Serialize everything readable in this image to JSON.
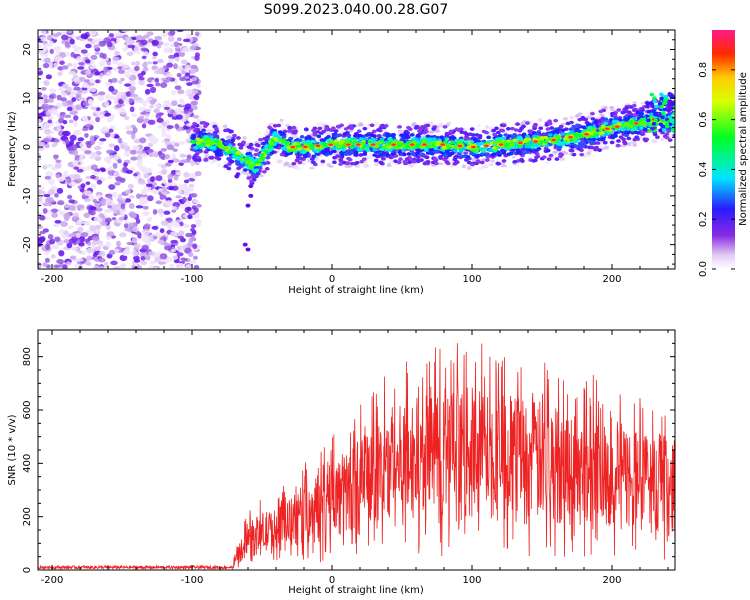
{
  "figure": {
    "title": "S099.2023.040.00.28.G07"
  },
  "chart_data": [
    {
      "type": "heatmap",
      "xlabel": "Height of straight line (km)",
      "ylabel": "Frequency (Hz)",
      "xlim": [
        -210,
        245
      ],
      "ylim": [
        -25,
        24
      ],
      "xticks": [
        -200,
        -100,
        0,
        100,
        200
      ],
      "yticks": [
        -20,
        -10,
        0,
        10,
        20
      ],
      "colorbar": {
        "label": "Normalized spectral amplitude",
        "range": [
          0,
          0.96
        ],
        "ticks": [
          "0.0",
          "0.2",
          "0.4",
          "0.6",
          "0.8"
        ],
        "tick_values": [
          0.0,
          0.2,
          0.4,
          0.6,
          0.8
        ]
      },
      "ridge": {
        "x": [
          -100,
          -90,
          -80,
          -70,
          -60,
          -55,
          -50,
          -45,
          -40,
          -30,
          -20,
          0,
          20,
          50,
          80,
          100,
          120,
          140,
          160,
          180,
          200,
          220,
          235,
          245
        ],
        "y": [
          1,
          1,
          0.5,
          -1,
          -3,
          -4,
          -2,
          0,
          2,
          0,
          0,
          0.5,
          0.5,
          0.5,
          0.5,
          0,
          0.5,
          1,
          1.5,
          2.5,
          4,
          5,
          6,
          5
        ]
      },
      "noise_region": {
        "x_range": [
          -210,
          -95
        ],
        "y_range": [
          -25,
          24
        ]
      }
    },
    {
      "type": "line",
      "xlabel": "Height of straight line (km)",
      "ylabel": "SNR (10 * v/v)",
      "xlim": [
        -210,
        245
      ],
      "ylim": [
        0,
        900
      ],
      "xticks": [
        -200,
        -100,
        0,
        100,
        200
      ],
      "yticks": [
        0,
        200,
        400,
        600,
        800
      ],
      "color": "#ee2222",
      "envelope": {
        "x": [
          -210,
          -80,
          -70,
          -60,
          -50,
          -40,
          -30,
          -20,
          -10,
          0,
          20,
          40,
          60,
          80,
          100,
          120,
          140,
          160,
          180,
          200,
          220,
          235,
          245
        ],
        "y": [
          10,
          10,
          40,
          130,
          160,
          170,
          200,
          240,
          270,
          300,
          370,
          440,
          480,
          500,
          510,
          500,
          480,
          460,
          440,
          420,
          390,
          370,
          350
        ]
      }
    }
  ]
}
